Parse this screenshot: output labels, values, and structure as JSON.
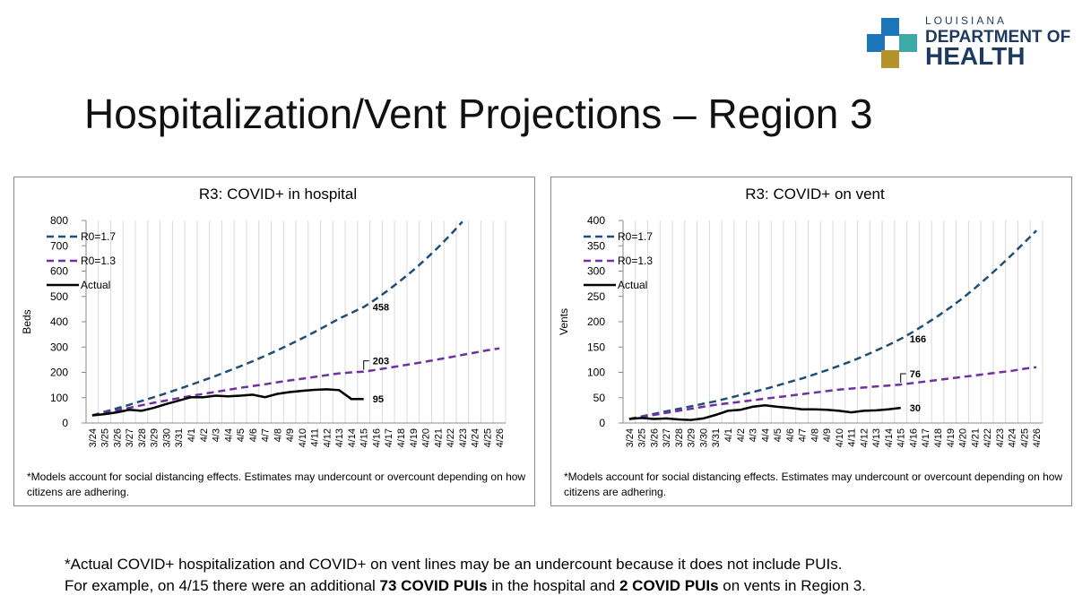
{
  "header": {
    "logo": {
      "top": "LOUISIANA",
      "middle": "DEPARTMENT OF",
      "bottom": "HEALTH"
    },
    "title": "Hospitalization/Vent Projections – Region 3"
  },
  "chart_data": [
    {
      "type": "line",
      "title": "R3: COVID+ in hospital",
      "ylabel": "Beds",
      "legend": "upper left",
      "grid": "x",
      "categories": [
        "3/24",
        "3/25",
        "3/26",
        "3/27",
        "3/28",
        "3/29",
        "3/30",
        "3/31",
        "4/1",
        "4/2",
        "4/3",
        "4/4",
        "4/5",
        "4/6",
        "4/7",
        "4/8",
        "4/9",
        "4/10",
        "4/11",
        "4/12",
        "4/13",
        "4/14",
        "4/15",
        "4/16",
        "4/17",
        "4/18",
        "4/19",
        "4/20",
        "4/21",
        "4/22",
        "4/23",
        "4/24",
        "4/25",
        "4/26"
      ],
      "ylim": [
        0,
        800
      ],
      "yticks": [
        0,
        100,
        200,
        300,
        400,
        500,
        600,
        700,
        800
      ],
      "series": [
        {
          "name": "R0=1.7",
          "color": "#1f4e79",
          "dash": true,
          "values": [
            30,
            44,
            58,
            72,
            87,
            102,
            118,
            134,
            151,
            168,
            186,
            205,
            224,
            244,
            265,
            287,
            310,
            334,
            359,
            385,
            412,
            435,
            458,
            490,
            525,
            563,
            603,
            646,
            692,
            742,
            795,
            null,
            null,
            null
          ]
        },
        {
          "name": "R0=1.3",
          "color": "#7030a0",
          "dash": true,
          "values": [
            30,
            40,
            50,
            60,
            70,
            80,
            89,
            98,
            107,
            115,
            123,
            131,
            139,
            146,
            153,
            161,
            168,
            175,
            182,
            189,
            196,
            200,
            203,
            210,
            218,
            226,
            234,
            242,
            251,
            260,
            269,
            278,
            287,
            295
          ]
        },
        {
          "name": "Actual",
          "color": "#000000",
          "dash": false,
          "values": [
            30,
            35,
            42,
            52,
            48,
            60,
            75,
            88,
            102,
            102,
            108,
            105,
            108,
            112,
            102,
            115,
            122,
            127,
            131,
            133,
            130,
            95,
            95,
            null,
            null,
            null,
            null,
            null,
            null,
            null,
            null,
            null,
            null,
            null
          ]
        }
      ],
      "note": "*Models account for social distancing effects. Estimates may undercount or overcount depending on how citizens are adhering."
    },
    {
      "type": "line",
      "title": "R3: COVID+ on vent",
      "ylabel": "Vents",
      "legend": "upper left",
      "grid": "x",
      "categories": [
        "3/24",
        "3/25",
        "3/26",
        "3/27",
        "3/28",
        "3/29",
        "3/30",
        "3/31",
        "4/1",
        "4/2",
        "4/3",
        "4/4",
        "4/5",
        "4/6",
        "4/7",
        "4/8",
        "4/9",
        "4/10",
        "4/11",
        "4/12",
        "4/13",
        "4/14",
        "4/15",
        "4/16",
        "4/17",
        "4/18",
        "4/19",
        "4/20",
        "4/21",
        "4/22",
        "4/23",
        "4/24",
        "4/25",
        "4/26"
      ],
      "ylim": [
        0,
        400
      ],
      "yticks": [
        0,
        50,
        100,
        150,
        200,
        250,
        300,
        350,
        400
      ],
      "series": [
        {
          "name": "R0=1.7",
          "color": "#1f4e79",
          "dash": true,
          "values": [
            8,
            13,
            18,
            23,
            28,
            33,
            38,
            43,
            49,
            55,
            61,
            67,
            74,
            81,
            88,
            96,
            104,
            113,
            122,
            132,
            143,
            154,
            166,
            180,
            195,
            211,
            228,
            246,
            266,
            287,
            309,
            332,
            356,
            380
          ]
        },
        {
          "name": "R0=1.3",
          "color": "#7030a0",
          "dash": true,
          "values": [
            8,
            12,
            16,
            20,
            24,
            28,
            32,
            36,
            39,
            42,
            45,
            48,
            51,
            54,
            57,
            60,
            63,
            66,
            68,
            70,
            72,
            74,
            76,
            79,
            82,
            85,
            88,
            91,
            94,
            97,
            100,
            103,
            107,
            110
          ]
        },
        {
          "name": "Actual",
          "color": "#000000",
          "dash": false,
          "values": [
            8,
            10,
            8,
            9,
            7,
            6,
            9,
            16,
            24,
            26,
            32,
            35,
            32,
            30,
            27,
            27,
            26,
            24,
            21,
            24,
            25,
            27,
            30,
            null,
            null,
            null,
            null,
            null,
            null,
            null,
            null,
            null,
            null,
            null
          ]
        }
      ],
      "note": "*Models account for social distancing effects. Estimates may undercount or overcount depending on how citizens are adhering."
    }
  ],
  "footnote": {
    "line1": "*Actual COVID+ hospitalization and COVID+ on vent lines may be an undercount because it does not include PUIs.",
    "line2": [
      "For example, on 4/15 there were an additional ",
      "73 COVID PUIs",
      " in the hospital and ",
      "2 COVID PUIs",
      " on vents in Region 3."
    ]
  }
}
